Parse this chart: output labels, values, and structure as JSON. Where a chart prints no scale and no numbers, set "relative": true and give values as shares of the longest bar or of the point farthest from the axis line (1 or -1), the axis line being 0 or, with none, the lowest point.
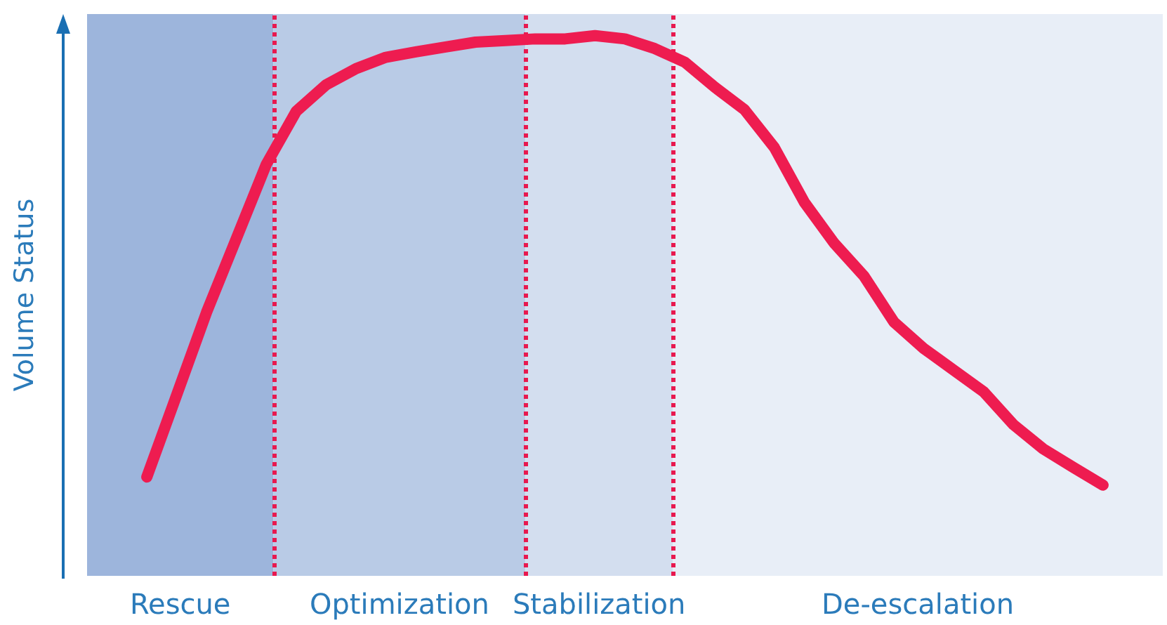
{
  "chart_data": {
    "type": "line",
    "ylabel": "Volume Status",
    "relative": true,
    "grid": false,
    "marker": "none",
    "line_style": "solid",
    "categories": [
      null,
      null,
      null,
      null,
      null,
      null,
      null,
      null,
      null,
      null,
      null,
      null,
      null,
      null,
      null,
      null,
      null,
      null,
      null,
      null,
      null,
      null,
      null,
      null,
      null,
      null,
      null,
      null,
      null,
      null,
      null,
      null,
      null,
      null,
      null,
      null,
      null
    ],
    "series": [
      {
        "color": "#ee1c50",
        "values": [
          null,
          null,
          0.183,
          0.335,
          0.488,
          0.625,
          0.762,
          0.86,
          0.909,
          0.939,
          0.96,
          0.97,
          0.979,
          0.988,
          0.991,
          0.994,
          0.994,
          1.0,
          0.994,
          0.976,
          0.951,
          0.905,
          0.863,
          0.793,
          0.692,
          0.616,
          0.555,
          0.47,
          0.421,
          0.381,
          0.341,
          0.28,
          0.235,
          0.201,
          0.168,
          null,
          null
        ]
      }
    ],
    "annotations": [
      "Rescue",
      "Optimization",
      "Stabilization",
      "De-escalation"
    ]
  }
}
